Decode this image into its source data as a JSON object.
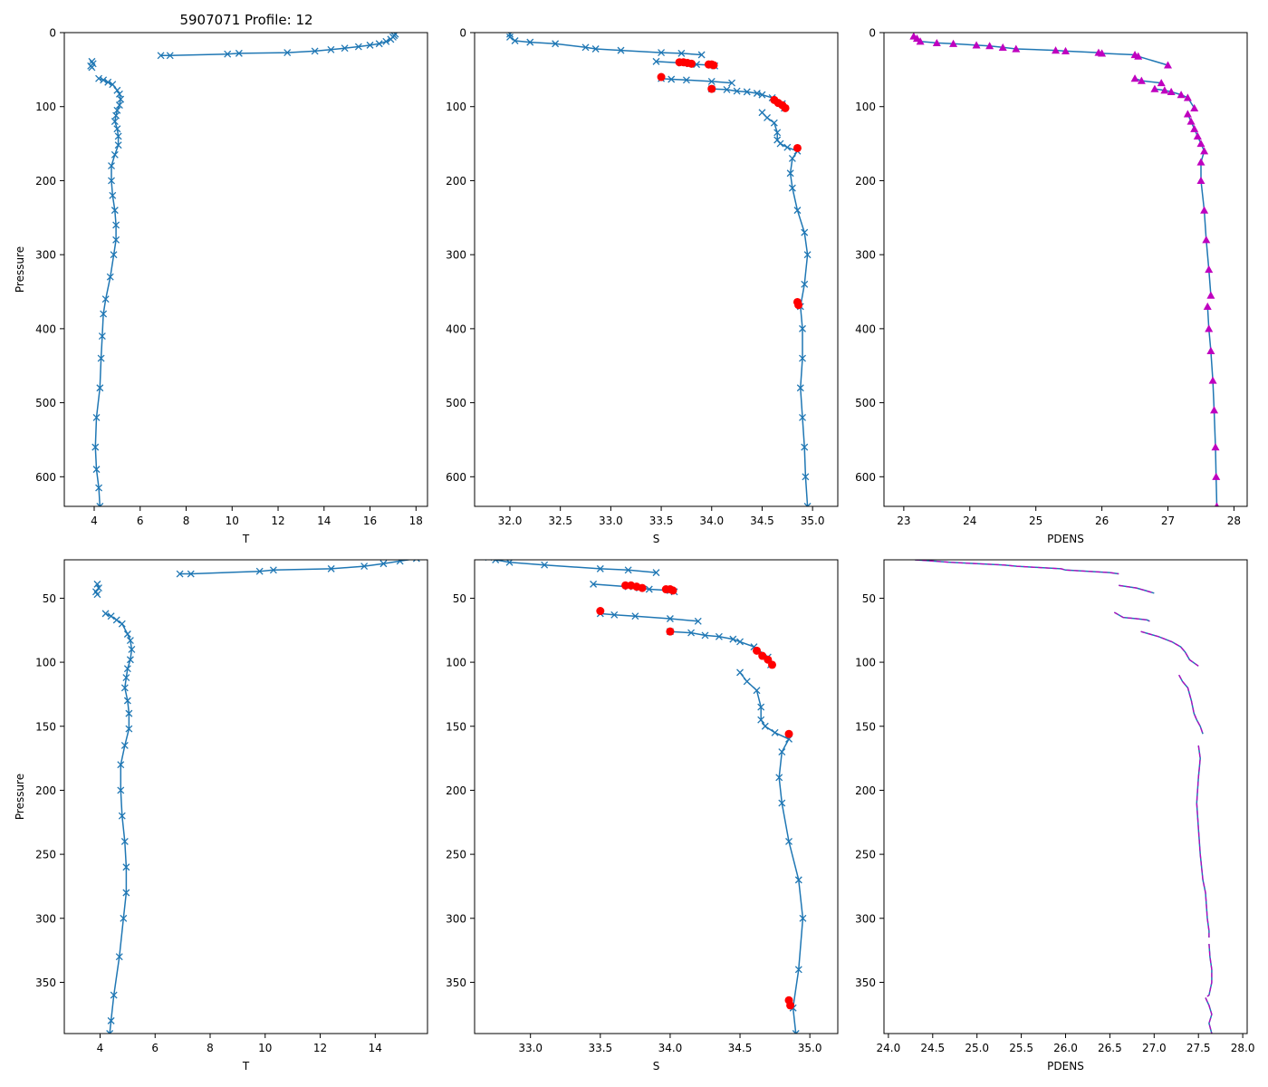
{
  "figure": {
    "title": "5907071 Profile: 12",
    "colors": {
      "series": "#1f77b4",
      "flagged": "#ff0000",
      "density_marker": "#bf00bf",
      "density_dash": "#bf00bf"
    }
  },
  "chart_data": [
    {
      "id": "top-temperature",
      "type": "line",
      "title": "5907071 Profile: 12",
      "xlabel": "T",
      "ylabel": "Pressure",
      "xlim": [
        2.7,
        18.5
      ],
      "ylim": [
        640,
        0
      ],
      "xticks": [
        4,
        6,
        8,
        10,
        12,
        14,
        16,
        18
      ],
      "yticks": [
        0,
        100,
        200,
        300,
        400,
        500,
        600
      ],
      "grid": false,
      "marker": "x",
      "segments": [
        {
          "x": [
            17.1,
            17.05,
            17.0,
            16.9,
            16.7,
            16.4,
            16.0,
            15.5,
            14.9,
            14.3,
            13.6,
            12.4,
            10.3,
            9.8,
            7.3,
            6.9
          ],
          "y": [
            2,
            4,
            6,
            9,
            12,
            15,
            17,
            19,
            21,
            23,
            25,
            27,
            28,
            29,
            31,
            31
          ]
        },
        {
          "x": [
            3.9,
            3.95,
            3.85,
            3.9
          ],
          "y": [
            39,
            42,
            45,
            47
          ]
        },
        {
          "x": [
            4.2,
            4.4,
            4.6,
            4.8,
            5.0,
            5.1,
            5.15,
            5.1,
            5.0,
            4.95,
            4.9,
            5.0,
            5.05,
            5.05,
            4.9,
            4.75,
            4.75,
            4.8,
            4.9,
            4.95,
            4.95,
            4.85,
            4.7,
            4.5,
            4.4,
            4.35,
            4.3,
            4.25,
            4.1,
            4.05,
            4.1,
            4.2,
            4.25
          ],
          "y": [
            62,
            64,
            67,
            70,
            78,
            83,
            90,
            98,
            105,
            112,
            120,
            130,
            140,
            152,
            165,
            180,
            200,
            220,
            240,
            260,
            280,
            300,
            330,
            360,
            380,
            410,
            440,
            480,
            520,
            560,
            590,
            615,
            640
          ]
        }
      ]
    },
    {
      "id": "top-salinity",
      "type": "line",
      "xlabel": "S",
      "ylabel": "",
      "xlim": [
        31.65,
        35.25
      ],
      "ylim": [
        640,
        0
      ],
      "xticks": [
        32.0,
        32.5,
        33.0,
        33.5,
        34.0,
        34.5,
        35.0
      ],
      "yticks": [
        0,
        100,
        200,
        300,
        400,
        500,
        600
      ],
      "grid": false,
      "marker": "x",
      "segments": [
        {
          "x": [
            32.0,
            32.0,
            32.05,
            32.2,
            32.45,
            32.75,
            32.85,
            33.1,
            33.5,
            33.7,
            33.9
          ],
          "y": [
            2,
            6,
            11,
            13,
            15,
            20,
            22,
            24,
            27,
            28,
            30
          ]
        },
        {
          "x": [
            33.45,
            33.7,
            33.78,
            33.85,
            34.0,
            34.03
          ],
          "y": [
            39,
            41,
            42,
            43,
            44,
            45
          ]
        },
        {
          "x": [
            33.5,
            33.6,
            33.75,
            34.0,
            34.2
          ],
          "y": [
            62,
            63,
            64,
            66,
            68
          ]
        },
        {
          "x": [
            34.0,
            34.15,
            34.25,
            34.35,
            34.45,
            34.5,
            34.6,
            34.7,
            34.72
          ],
          "y": [
            76,
            77,
            79,
            80,
            82,
            84,
            88,
            96,
            102
          ]
        },
        {
          "x": [
            34.5,
            34.55,
            34.62,
            34.65,
            34.65,
            34.68,
            34.75,
            34.85,
            34.8,
            34.78,
            34.8,
            34.85,
            34.92,
            34.95,
            34.92,
            34.88,
            34.9,
            34.9,
            34.88,
            34.9,
            34.92,
            34.93,
            34.95
          ],
          "y": [
            108,
            115,
            122,
            135,
            145,
            150,
            155,
            160,
            170,
            190,
            210,
            240,
            270,
            300,
            340,
            370,
            400,
            440,
            480,
            520,
            560,
            600,
            640
          ]
        }
      ],
      "flagged_points": {
        "x": [
          33.68,
          33.72,
          33.76,
          33.8,
          33.97,
          34.0,
          34.02,
          33.5,
          34.0,
          34.62,
          34.66,
          34.7,
          34.73,
          34.85,
          34.85,
          34.86
        ],
        "y": [
          40,
          40,
          41,
          42,
          43,
          43,
          44,
          60,
          76,
          91,
          95,
          98,
          102,
          156,
          364,
          368
        ]
      }
    },
    {
      "id": "top-density",
      "type": "line",
      "xlabel": "PDENS",
      "ylabel": "",
      "xlim": [
        22.7,
        28.2
      ],
      "ylim": [
        640,
        0
      ],
      "xticks": [
        23,
        24,
        25,
        26,
        27,
        28
      ],
      "yticks": [
        0,
        100,
        200,
        300,
        400,
        500,
        600
      ],
      "grid": false,
      "marker": "triangle",
      "segments": [
        {
          "x": [
            23.15,
            23.2,
            23.25,
            23.5,
            23.75,
            24.1,
            24.3,
            24.5,
            24.7,
            25.3,
            25.45,
            25.95,
            26.0,
            26.5,
            26.55,
            27.0
          ],
          "y": [
            5,
            8,
            12,
            14,
            15,
            17,
            18,
            20,
            22,
            24,
            25,
            27,
            28,
            30,
            32,
            44
          ]
        },
        {
          "x": [
            26.5,
            26.6,
            26.9
          ],
          "y": [
            62,
            65,
            68
          ]
        },
        {
          "x": [
            26.8,
            26.95,
            27.05,
            27.2,
            27.3,
            27.4
          ],
          "y": [
            76,
            78,
            80,
            84,
            88,
            102
          ]
        },
        {
          "x": [
            27.3,
            27.35,
            27.4,
            27.45,
            27.5,
            27.55,
            27.5,
            27.5,
            27.55,
            27.58,
            27.62,
            27.65
          ],
          "y": [
            110,
            120,
            130,
            140,
            150,
            160,
            175,
            200,
            240,
            280,
            320,
            355
          ]
        },
        {
          "x": [
            27.6,
            27.62,
            27.65,
            27.68,
            27.7,
            27.72,
            27.73,
            27.74
          ],
          "y": [
            370,
            400,
            430,
            470,
            510,
            560,
            600,
            640
          ]
        }
      ]
    },
    {
      "id": "bottom-temperature",
      "type": "line",
      "xlabel": "T",
      "ylabel": "Pressure",
      "xlim": [
        2.7,
        15.9
      ],
      "ylim": [
        390,
        20
      ],
      "xticks": [
        4,
        6,
        8,
        10,
        12,
        14
      ],
      "yticks": [
        50,
        100,
        150,
        200,
        250,
        300,
        350
      ],
      "grid": false,
      "marker": "x",
      "segments": [
        {
          "x": [
            15.5,
            14.9,
            14.3,
            13.6,
            12.4,
            10.3,
            9.8,
            7.3,
            6.9
          ],
          "y": [
            19,
            21,
            23,
            25,
            27,
            28,
            29,
            31,
            31
          ]
        },
        {
          "x": [
            3.9,
            3.95,
            3.85,
            3.9
          ],
          "y": [
            39,
            42,
            45,
            47
          ]
        },
        {
          "x": [
            4.2,
            4.4,
            4.6,
            4.8,
            5.0,
            5.1,
            5.15,
            5.1,
            5.0,
            4.95,
            4.9,
            5.0,
            5.05,
            5.05,
            4.9,
            4.75,
            4.75,
            4.8,
            4.9,
            4.95,
            4.95,
            4.85,
            4.7,
            4.5,
            4.4,
            4.35
          ],
          "y": [
            62,
            64,
            67,
            70,
            78,
            83,
            90,
            98,
            105,
            112,
            120,
            130,
            140,
            152,
            165,
            180,
            200,
            220,
            240,
            260,
            280,
            300,
            330,
            360,
            380,
            390
          ]
        }
      ]
    },
    {
      "id": "bottom-salinity",
      "type": "line",
      "xlabel": "S",
      "ylabel": "",
      "xlim": [
        32.6,
        35.2
      ],
      "ylim": [
        390,
        20
      ],
      "xticks": [
        33.0,
        33.5,
        34.0,
        34.5,
        35.0
      ],
      "yticks": [
        50,
        100,
        150,
        200,
        250,
        300,
        350
      ],
      "grid": false,
      "marker": "x",
      "segments": [
        {
          "x": [
            32.7,
            32.75,
            32.85,
            33.1,
            33.5,
            33.7,
            33.9
          ],
          "y": [
            18,
            20,
            22,
            24,
            27,
            28,
            30
          ]
        },
        {
          "x": [
            33.45,
            33.7,
            33.78,
            33.85,
            34.0,
            34.03
          ],
          "y": [
            39,
            41,
            42,
            43,
            44,
            45
          ]
        },
        {
          "x": [
            33.5,
            33.6,
            33.75,
            34.0,
            34.2
          ],
          "y": [
            62,
            63,
            64,
            66,
            68
          ]
        },
        {
          "x": [
            34.0,
            34.15,
            34.25,
            34.35,
            34.45,
            34.5,
            34.6,
            34.7,
            34.72
          ],
          "y": [
            76,
            77,
            79,
            80,
            82,
            84,
            88,
            96,
            102
          ]
        },
        {
          "x": [
            34.5,
            34.55,
            34.62,
            34.65,
            34.65,
            34.68,
            34.75,
            34.85,
            34.8,
            34.78,
            34.8,
            34.85,
            34.92,
            34.95,
            34.92,
            34.88,
            34.9
          ],
          "y": [
            108,
            115,
            122,
            135,
            145,
            150,
            155,
            160,
            170,
            190,
            210,
            240,
            270,
            300,
            340,
            370,
            390
          ]
        }
      ],
      "flagged_points": {
        "x": [
          33.68,
          33.72,
          33.76,
          33.8,
          33.97,
          34.0,
          34.02,
          33.5,
          34.0,
          34.62,
          34.66,
          34.7,
          34.73,
          34.85,
          34.85,
          34.86
        ],
        "y": [
          40,
          40,
          41,
          42,
          43,
          43,
          44,
          60,
          76,
          91,
          95,
          98,
          102,
          156,
          364,
          368
        ]
      }
    },
    {
      "id": "bottom-density",
      "type": "line",
      "xlabel": "PDENS",
      "ylabel": "",
      "xlim": [
        23.95,
        28.05
      ],
      "ylim": [
        390,
        20
      ],
      "xticks": [
        24.0,
        24.5,
        25.0,
        25.5,
        26.0,
        26.5,
        27.0,
        27.5,
        28.0
      ],
      "yticks": [
        50,
        100,
        150,
        200,
        250,
        300,
        350
      ],
      "grid": false,
      "marker": "dashed-overlay",
      "segments": [
        {
          "x": [
            24.3,
            24.5,
            24.7,
            25.3,
            25.45,
            25.95,
            26.0,
            26.5,
            26.6
          ],
          "y": [
            20,
            21,
            22,
            24,
            25,
            27,
            28,
            30,
            31
          ]
        },
        {
          "x": [
            26.6,
            26.8,
            26.9,
            27.0
          ],
          "y": [
            40,
            42,
            44,
            46
          ]
        },
        {
          "x": [
            26.55,
            26.65,
            26.8,
            26.92,
            26.95
          ],
          "y": [
            61,
            65,
            66,
            67,
            68
          ]
        },
        {
          "x": [
            26.85,
            26.95,
            27.05,
            27.2,
            27.3,
            27.35,
            27.4,
            27.5
          ],
          "y": [
            76,
            78,
            80,
            84,
            88,
            92,
            98,
            103
          ]
        },
        {
          "x": [
            27.28,
            27.32,
            27.38,
            27.42,
            27.45,
            27.48,
            27.52,
            27.55
          ],
          "y": [
            110,
            115,
            120,
            130,
            140,
            145,
            150,
            156
          ]
        },
        {
          "x": [
            27.5,
            27.52,
            27.5,
            27.48,
            27.5,
            27.52,
            27.55,
            27.58,
            27.6,
            27.62,
            27.62
          ],
          "y": [
            165,
            175,
            190,
            210,
            230,
            250,
            270,
            280,
            300,
            310,
            315
          ]
        },
        {
          "x": [
            27.62,
            27.63,
            27.65,
            27.65,
            27.62,
            27.6
          ],
          "y": [
            320,
            330,
            340,
            350,
            360,
            361
          ]
        },
        {
          "x": [
            27.58,
            27.62,
            27.65,
            27.62,
            27.65
          ],
          "y": [
            362,
            368,
            375,
            382,
            390
          ]
        }
      ]
    }
  ]
}
